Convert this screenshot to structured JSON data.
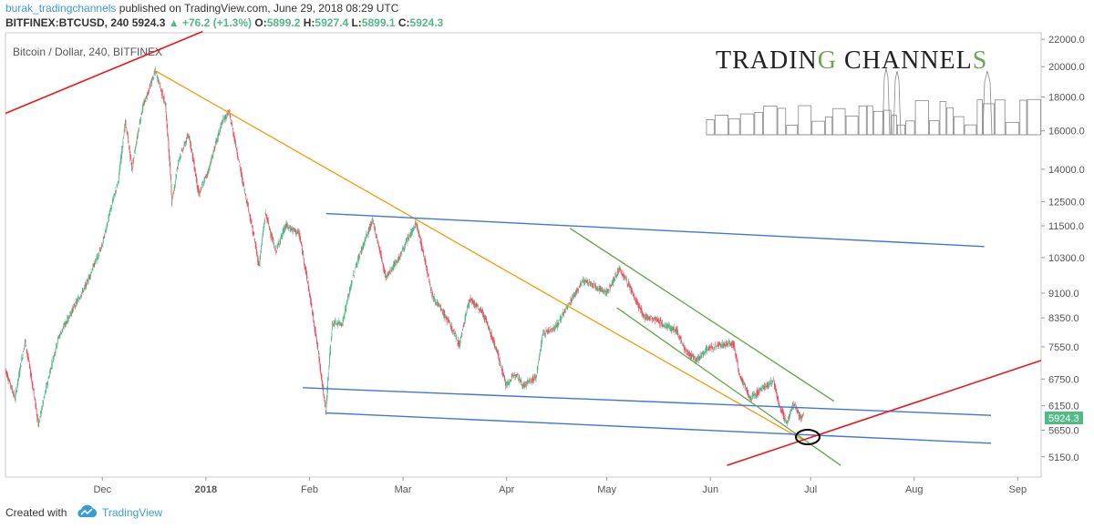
{
  "header": {
    "author": "burak_tradingchannels",
    "published": "published on TradingView.com, June 29, 2018 08:29 UTC",
    "symbol": "BITFINEX:BTCUSD, 240",
    "last": "5924.3",
    "change": "▲ +76.2 (+1.3%)",
    "o_label": "O:",
    "o_val": "5899.2",
    "h_label": "H:",
    "h_val": "5927.4",
    "l_label": "L:",
    "l_val": "5899.1",
    "c_label": "C:",
    "c_val": "5924.3"
  },
  "watermark": {
    "text_a": "TRADIN",
    "text_b": "G",
    "text_c": " CHANNEL",
    "text_d": "S"
  },
  "footer": {
    "created_with": "Created with",
    "brand": "TradingView"
  },
  "colors": {
    "candle_up": "#53b987",
    "candle_down": "#eb4d5c",
    "trend_red": "#e8191d",
    "trend_orange": "#f4a11f",
    "channel_blue": "#3c78d8",
    "channel_green": "#6aa84f",
    "price_label_bg": "#53b987"
  },
  "chart_data": {
    "type": "candlestick",
    "title": "Bitcoin / Dollar, 240, BITFINEX",
    "scale": "log",
    "y_ticks": [
      "22000.0",
      "20000.0",
      "18000.0",
      "16000.0",
      "14000.0",
      "12500.0",
      "11500.0",
      "10300.0",
      "9100.0",
      "8350.0",
      "7550.0",
      "6750.0",
      "6150.0",
      "5650.0",
      "5150.0"
    ],
    "x_ticks": [
      "Dec",
      "2018",
      "Feb",
      "Mar",
      "Apr",
      "May",
      "Jun",
      "Jul",
      "Aug",
      "Sep"
    ],
    "last_price": "5924.3",
    "ylim": [
      4800,
      22500
    ],
    "xlim": [
      "2017-11-02",
      "2018-09-08"
    ],
    "price_path": [
      [
        "2017-11-02",
        7000
      ],
      [
        "2017-11-05",
        6300
      ],
      [
        "2017-11-08",
        7700
      ],
      [
        "2017-11-12",
        5750
      ],
      [
        "2017-11-18",
        7800
      ],
      [
        "2017-11-26",
        9300
      ],
      [
        "2017-12-01",
        10700
      ],
      [
        "2017-12-06",
        13500
      ],
      [
        "2017-12-08",
        16500
      ],
      [
        "2017-12-10",
        14000
      ],
      [
        "2017-12-13",
        17200
      ],
      [
        "2017-12-17",
        19700
      ],
      [
        "2017-12-20",
        17500
      ],
      [
        "2017-12-22",
        12500
      ],
      [
        "2017-12-24",
        14500
      ],
      [
        "2017-12-27",
        15800
      ],
      [
        "2017-12-30",
        12800
      ],
      [
        "2018-01-02",
        14000
      ],
      [
        "2018-01-06",
        16500
      ],
      [
        "2018-01-08",
        17100
      ],
      [
        "2018-01-12",
        13500
      ],
      [
        "2018-01-17",
        10000
      ],
      [
        "2018-01-19",
        12000
      ],
      [
        "2018-01-22",
        10500
      ],
      [
        "2018-01-25",
        11500
      ],
      [
        "2018-01-29",
        11200
      ],
      [
        "2018-02-02",
        8500
      ],
      [
        "2018-02-06",
        6000
      ],
      [
        "2018-02-08",
        8200
      ],
      [
        "2018-02-11",
        8200
      ],
      [
        "2018-02-15",
        10000
      ],
      [
        "2018-02-20",
        11700
      ],
      [
        "2018-02-24",
        9600
      ],
      [
        "2018-02-28",
        10300
      ],
      [
        "2018-03-05",
        11600
      ],
      [
        "2018-03-10",
        9000
      ],
      [
        "2018-03-15",
        8200
      ],
      [
        "2018-03-18",
        7600
      ],
      [
        "2018-03-21",
        8900
      ],
      [
        "2018-03-25",
        8500
      ],
      [
        "2018-03-29",
        7500
      ],
      [
        "2018-04-01",
        6600
      ],
      [
        "2018-04-04",
        6900
      ],
      [
        "2018-04-06",
        6600
      ],
      [
        "2018-04-10",
        6800
      ],
      [
        "2018-04-12",
        7900
      ],
      [
        "2018-04-16",
        8100
      ],
      [
        "2018-04-20",
        8800
      ],
      [
        "2018-04-24",
        9500
      ],
      [
        "2018-04-28",
        9300
      ],
      [
        "2018-05-01",
        9100
      ],
      [
        "2018-05-05",
        9900
      ],
      [
        "2018-05-08",
        9300
      ],
      [
        "2018-05-12",
        8400
      ],
      [
        "2018-05-16",
        8300
      ],
      [
        "2018-05-19",
        8100
      ],
      [
        "2018-05-22",
        8000
      ],
      [
        "2018-05-25",
        7400
      ],
      [
        "2018-05-28",
        7200
      ],
      [
        "2018-05-31",
        7500
      ],
      [
        "2018-06-04",
        7600
      ],
      [
        "2018-06-08",
        7650
      ],
      [
        "2018-06-10",
        6800
      ],
      [
        "2018-06-13",
        6300
      ],
      [
        "2018-06-16",
        6500
      ],
      [
        "2018-06-20",
        6700
      ],
      [
        "2018-06-22",
        6100
      ],
      [
        "2018-06-24",
        5800
      ],
      [
        "2018-06-26",
        6200
      ],
      [
        "2018-06-28",
        5900
      ],
      [
        "2018-06-29",
        5924
      ]
    ],
    "trendlines": [
      {
        "color": "red",
        "points": [
          [
            "2017-11-02",
            17000
          ],
          [
            "2017-12-31",
            22600
          ]
        ]
      },
      {
        "color": "orange",
        "points": [
          [
            "2017-12-17",
            19700
          ],
          [
            "2018-06-29",
            5450
          ]
        ]
      },
      {
        "color": "blue",
        "points": [
          [
            "2018-02-06",
            12000
          ],
          [
            "2018-08-22",
            10700
          ]
        ]
      },
      {
        "color": "blue",
        "points": [
          [
            "2018-01-30",
            6550
          ],
          [
            "2018-08-24",
            5950
          ]
        ]
      },
      {
        "color": "blue",
        "points": [
          [
            "2018-02-06",
            6000
          ],
          [
            "2018-08-24",
            5400
          ]
        ]
      },
      {
        "color": "green",
        "points": [
          [
            "2018-04-20",
            11400
          ],
          [
            "2018-07-08",
            6250
          ]
        ]
      },
      {
        "color": "green",
        "points": [
          [
            "2018-05-04",
            8650
          ],
          [
            "2018-07-10",
            5000
          ]
        ]
      },
      {
        "color": "red",
        "points": [
          [
            "2018-06-06",
            5000
          ],
          [
            "2018-09-08",
            7200
          ]
        ]
      }
    ]
  }
}
